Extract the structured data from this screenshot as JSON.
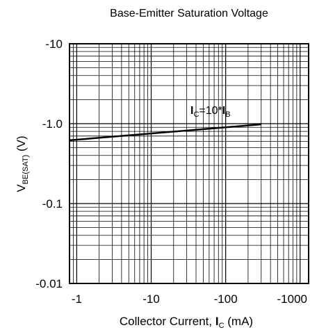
{
  "chart_data": {
    "type": "line",
    "title": "Base-Emitter Saturation Voltage",
    "xlabel": {
      "text": "Collector Current, ",
      "sym": "I",
      "sub": "C",
      "unit": " (mA)"
    },
    "ylabel": {
      "sym": "V",
      "sub": "BE(SAT)",
      "unit": " (V)"
    },
    "x_scale": "log",
    "y_scale": "log",
    "x_tick_values": [
      -1,
      -10,
      -100,
      -1000
    ],
    "x_tick_labels": [
      "-1",
      "-10",
      "-100",
      "-1000"
    ],
    "y_tick_values": [
      -10,
      -1.0,
      -0.1,
      -0.01
    ],
    "y_tick_labels": [
      "-10",
      "-1.0",
      "-0.1",
      "-0.01"
    ],
    "xlim": [
      -0.8,
      -1300
    ],
    "ylim": [
      -0.01,
      -10
    ],
    "grid": true,
    "series": [
      {
        "name": "",
        "x": [
          -0.8,
          -300
        ],
        "y": [
          -0.62,
          -0.98
        ],
        "color": "#000000"
      }
    ],
    "annotation": {
      "sym1": "I",
      "sub1": "C",
      "mid": "=10*",
      "sym2": "I",
      "sub2": "B",
      "x": -100,
      "y": -1.5
    }
  }
}
